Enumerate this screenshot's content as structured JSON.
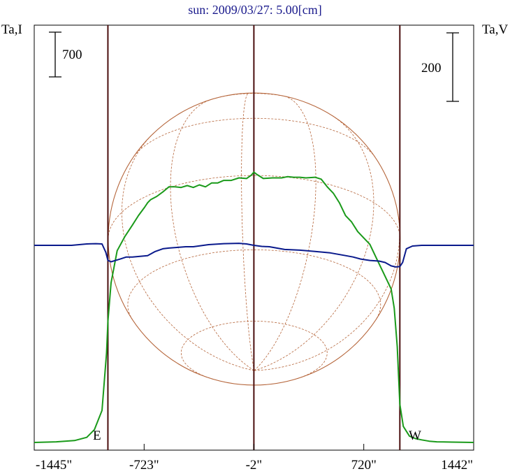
{
  "chart_data": {
    "type": "line",
    "title": "sun: 2009/03/27: 5.00[cm]",
    "left_axis_label": "Ta,I",
    "right_axis_label": "Ta,V",
    "left_scale_bar_label": "700",
    "right_scale_bar_label": "200",
    "east_label": "E",
    "west_label": "W",
    "x_tick_labels": [
      "-1445\"",
      "-723\"",
      "-2\"",
      "720\"",
      "1442\""
    ],
    "x_ticks": [
      -1445,
      -723,
      -2,
      720,
      1442
    ],
    "xlim": [
      -1445,
      1442
    ],
    "limb_markers": [
      -961,
      -2,
      957
    ],
    "solar_radius_arcsec": 959,
    "colors": {
      "intensity": "#1a9a1a",
      "polarization": "#0a1a8c",
      "disk": "#b5653a",
      "markers": "#4a0e0e",
      "title": "#1a1a8c"
    },
    "series": [
      {
        "name": "Ta,I",
        "unit_note": "",
        "x": [
          -1445,
          -1300,
          -1180,
          -1100,
          -1050,
          -1000,
          -970,
          -961,
          -940,
          -900,
          -850,
          -800,
          -760,
          -720,
          -700,
          -680,
          -640,
          -600,
          -560,
          -520,
          -480,
          -440,
          -400,
          -360,
          -320,
          -280,
          -240,
          -200,
          -150,
          -100,
          -50,
          -20,
          -2,
          20,
          60,
          120,
          180,
          220,
          260,
          300,
          340,
          400,
          440,
          480,
          520,
          560,
          600,
          640,
          680,
          720,
          760,
          800,
          840,
          880,
          900,
          920,
          940,
          957,
          980,
          1020,
          1060,
          1100,
          1150,
          1200,
          1300,
          1442
        ],
        "y": [
          0,
          10,
          30,
          80,
          200,
          500,
          1400,
          1900,
          2500,
          3000,
          3220,
          3400,
          3550,
          3680,
          3750,
          3800,
          3850,
          3920,
          4000,
          4000,
          3990,
          4020,
          3990,
          4030,
          4000,
          4060,
          4060,
          4100,
          4100,
          4140,
          4130,
          4180,
          4230,
          4190,
          4130,
          4140,
          4140,
          4160,
          4150,
          4150,
          4140,
          4150,
          4120,
          4000,
          3900,
          3750,
          3550,
          3450,
          3300,
          3200,
          3100,
          2900,
          2700,
          2500,
          2400,
          2100,
          1500,
          600,
          250,
          100,
          60,
          40,
          20,
          10,
          5,
          0
        ]
      },
      {
        "name": "Ta,V",
        "unit_note": "",
        "x": [
          -1445,
          -1200,
          -1100,
          -1040,
          -1000,
          -975,
          -961,
          -940,
          -880,
          -840,
          -800,
          -700,
          -650,
          -600,
          -560,
          -500,
          -450,
          -400,
          -300,
          -200,
          -100,
          -50,
          -2,
          50,
          100,
          200,
          300,
          400,
          500,
          600,
          650,
          700,
          760,
          820,
          860,
          900,
          930,
          957,
          975,
          1000,
          1040,
          1100,
          1200,
          1442
        ],
        "y": [
          0,
          0,
          4,
          5,
          4,
          -20,
          -44,
          -48,
          -40,
          -34,
          -34,
          -30,
          -18,
          -10,
          -8,
          -6,
          -4,
          -4,
          2,
          5,
          6,
          4,
          0,
          -3,
          -4,
          -12,
          -14,
          -18,
          -22,
          -30,
          -34,
          -40,
          -44,
          -46,
          -50,
          -60,
          -63,
          -62,
          -50,
          -10,
          -2,
          0,
          0,
          0
        ]
      }
    ]
  }
}
